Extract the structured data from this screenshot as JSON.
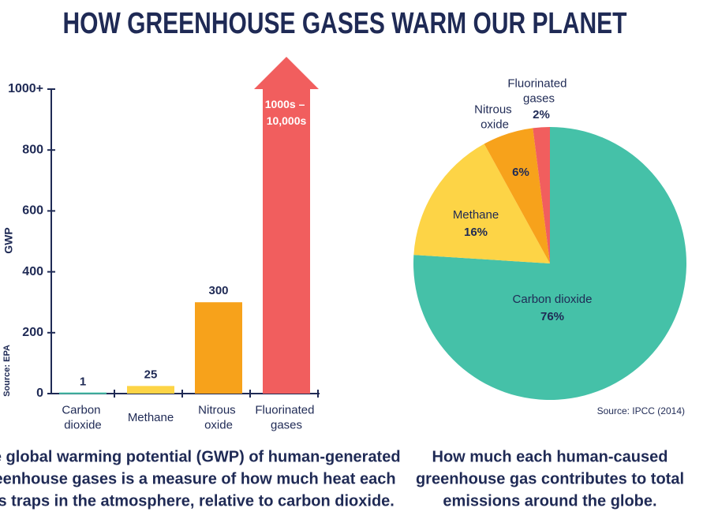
{
  "title": "HOW GREENHOUSE GASES WARM OUR PLANET",
  "chart_data": [
    {
      "type": "bar",
      "y_label": "GWP",
      "source": "Source: EPA",
      "categories": [
        "Carbon dioxide",
        "Methane",
        "Nitrous oxide",
        "Fluorinated gases"
      ],
      "values": [
        1,
        25,
        300,
        1000
      ],
      "value_labels": [
        "1",
        "25",
        "300",
        "1000s – 10,000s"
      ],
      "colors": [
        "#45c1a8",
        "#fdd446",
        "#f7a21b",
        "#f15e5e"
      ],
      "ylim": [
        0,
        1000
      ],
      "yticks": [
        0,
        200,
        400,
        600,
        800,
        {
          "value": 1000,
          "label": "1000+"
        }
      ],
      "caption": [
        "The global warming potential (GWP) of human-generated",
        "greenhouse gases is a measure of how much heat each",
        "gas traps in the atmosphere, relative to carbon dioxide."
      ]
    },
    {
      "type": "pie",
      "source": "Source: IPCC (2014)",
      "categories": [
        "Carbon dioxide",
        "Methane",
        "Nitrous oxide",
        "Fluorinated gases"
      ],
      "values": [
        76,
        16,
        6,
        2
      ],
      "value_labels": [
        "76%",
        "16%",
        "6%",
        "2%"
      ],
      "colors": [
        "#45c1a8",
        "#fdd446",
        "#f7a21b",
        "#f15e5e"
      ],
      "caption": [
        "How much each human-caused",
        "greenhouse gas contributes to total",
        "emissions around the globe."
      ]
    }
  ]
}
